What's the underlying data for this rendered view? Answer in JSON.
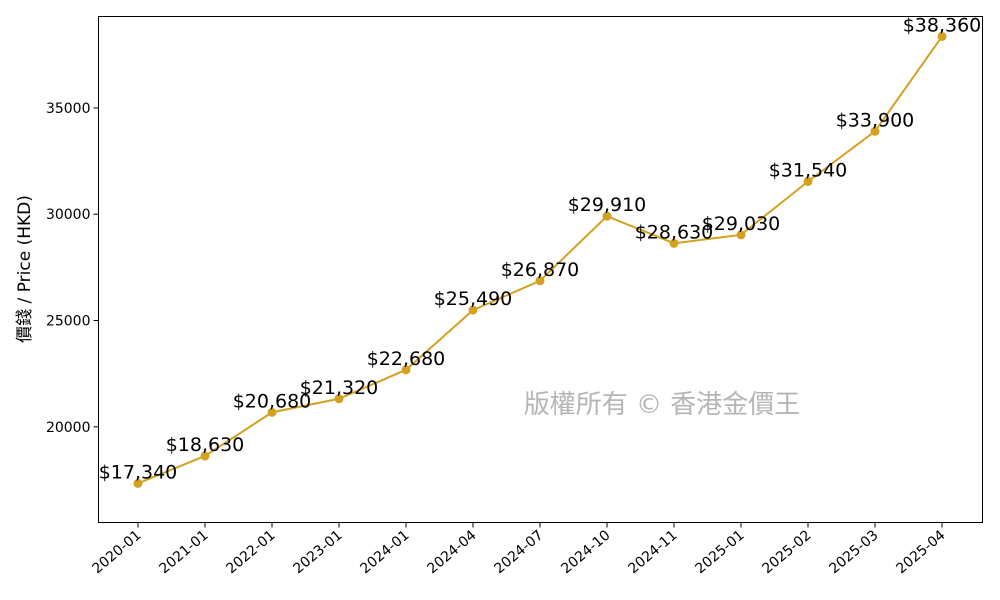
{
  "chart_data": {
    "type": "line",
    "categories": [
      "2020-01",
      "2021-01",
      "2022-01",
      "2023-01",
      "2024-01",
      "2024-04",
      "2024-07",
      "2024-10",
      "2024-11",
      "2025-01",
      "2025-02",
      "2025-03",
      "2025-04"
    ],
    "values": [
      17340,
      18630,
      20680,
      21320,
      22680,
      25490,
      26870,
      29910,
      28630,
      29030,
      31540,
      33900,
      38360
    ],
    "data_labels": [
      "$17,340",
      "$18,630",
      "$20,680",
      "$21,320",
      "$22,680",
      "$25,490",
      "$26,870",
      "$29,910",
      "$28,630",
      "$29,030",
      "$31,540",
      "$33,900",
      "$38,360"
    ],
    "ylabel": "價錢 / Price (HKD)",
    "yticks": [
      20000,
      25000,
      30000,
      35000
    ],
    "ylim": [
      15500,
      39300
    ],
    "grid": false,
    "line_color": "#D4A020",
    "watermark": "版權所有 © 香港金價王"
  }
}
